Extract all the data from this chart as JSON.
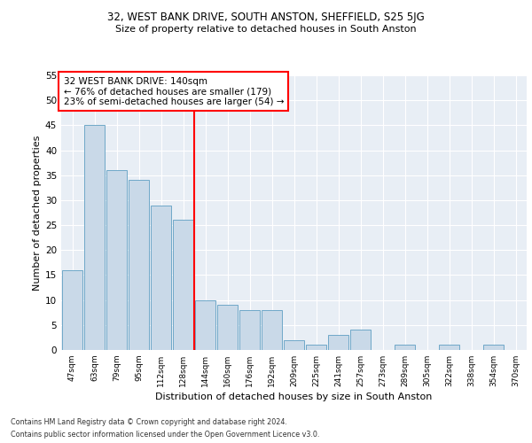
{
  "title1": "32, WEST BANK DRIVE, SOUTH ANSTON, SHEFFIELD, S25 5JG",
  "title2": "Size of property relative to detached houses in South Anston",
  "xlabel": "Distribution of detached houses by size in South Anston",
  "ylabel": "Number of detached properties",
  "categories": [
    "47sqm",
    "63sqm",
    "79sqm",
    "95sqm",
    "112sqm",
    "128sqm",
    "144sqm",
    "160sqm",
    "176sqm",
    "192sqm",
    "209sqm",
    "225sqm",
    "241sqm",
    "257sqm",
    "273sqm",
    "289sqm",
    "305sqm",
    "322sqm",
    "338sqm",
    "354sqm",
    "370sqm"
  ],
  "values": [
    16,
    45,
    36,
    34,
    29,
    26,
    10,
    9,
    8,
    8,
    2,
    1,
    3,
    4,
    0,
    1,
    0,
    1,
    0,
    1,
    0
  ],
  "bar_color": "#c9d9e8",
  "bar_edge_color": "#6fa8c8",
  "vline_index": 6,
  "annotation_text": "32 WEST BANK DRIVE: 140sqm\n← 76% of detached houses are smaller (179)\n23% of semi-detached houses are larger (54) →",
  "annotation_box_color": "white",
  "annotation_box_edge_color": "red",
  "vline_color": "red",
  "ylim": [
    0,
    55
  ],
  "yticks": [
    0,
    5,
    10,
    15,
    20,
    25,
    30,
    35,
    40,
    45,
    50,
    55
  ],
  "background_color": "#e8eef5",
  "footer1": "Contains HM Land Registry data © Crown copyright and database right 2024.",
  "footer2": "Contains public sector information licensed under the Open Government Licence v3.0."
}
